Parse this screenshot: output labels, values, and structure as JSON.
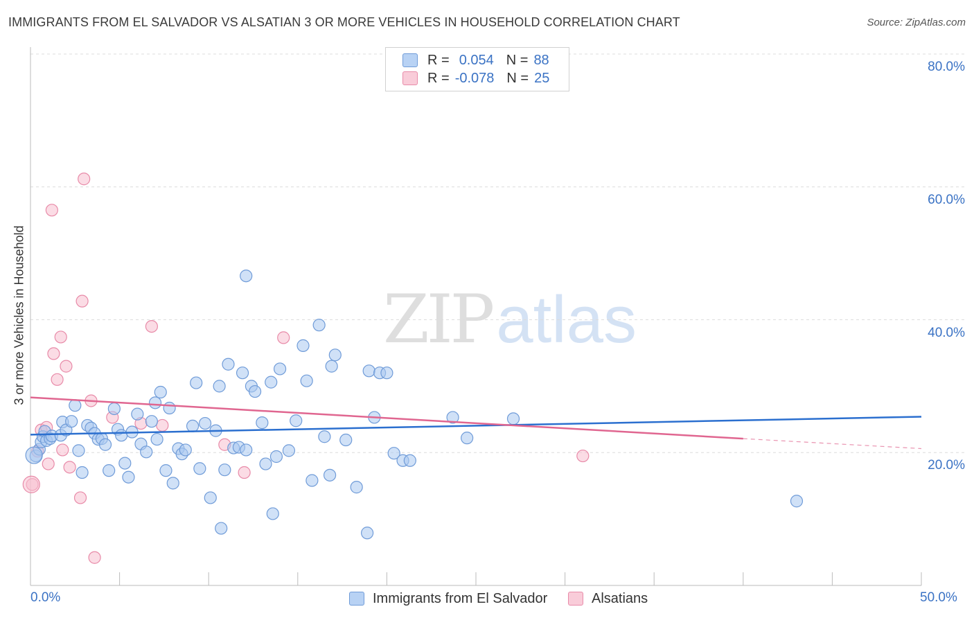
{
  "header": {
    "title": "IMMIGRANTS FROM EL SALVADOR VS ALSATIAN 3 OR MORE VEHICLES IN HOUSEHOLD CORRELATION CHART",
    "source": "Source: ZipAtlas.com"
  },
  "watermark": {
    "zip": "ZIP",
    "atlas": "atlas"
  },
  "legend": {
    "rows": [
      {
        "r_label": "R =",
        "r_value": "0.054",
        "n_label": "N =",
        "n_value": "88"
      },
      {
        "r_label": "R =",
        "r_value": "-0.078",
        "n_label": "N =",
        "n_value": "25"
      }
    ]
  },
  "colors": {
    "blue_fill": "#aac8f0",
    "blue_stroke": "#6f9bd8",
    "blue_line": "#2b6fcf",
    "pink_fill": "#f7bfd0",
    "pink_stroke": "#e88aa8",
    "pink_line": "#e06690",
    "tick_label": "#3a72c4",
    "grid": "#dcdcdc"
  },
  "chart_data": {
    "type": "scatter",
    "title": "IMMIGRANTS FROM EL SALVADOR VS ALSATIAN 3 OR MORE VEHICLES IN HOUSEHOLD CORRELATION CHART",
    "xlabel": "",
    "ylabel": "3 or more Vehicles in Household",
    "xlim": [
      0,
      50
    ],
    "ylim": [
      0,
      80
    ],
    "x_tick_labels": [
      "0.0%",
      "50.0%"
    ],
    "y_ticks": [
      20,
      40,
      60,
      80
    ],
    "y_tick_labels": [
      "20.0%",
      "40.0%",
      "60.0%",
      "80.0%"
    ],
    "grid": true,
    "legend_position": "bottom",
    "series": [
      {
        "name": "Immigrants from El Salvador",
        "trend": {
          "x": [
            0,
            50
          ],
          "y": [
            22.7,
            25.4
          ]
        },
        "points": [
          [
            0.3,
            19.5
          ],
          [
            0.5,
            20.5
          ],
          [
            0.6,
            21.6
          ],
          [
            0.7,
            22.4
          ],
          [
            0.8,
            23.2
          ],
          [
            0.9,
            21.8
          ],
          [
            1.1,
            22.1
          ],
          [
            1.2,
            22.5
          ],
          [
            1.7,
            22.6
          ],
          [
            1.8,
            24.6
          ],
          [
            2.0,
            23.4
          ],
          [
            2.3,
            24.7
          ],
          [
            2.5,
            27.1
          ],
          [
            2.7,
            20.3
          ],
          [
            2.9,
            17.0
          ],
          [
            3.2,
            24.1
          ],
          [
            3.4,
            23.7
          ],
          [
            3.6,
            22.9
          ],
          [
            3.8,
            22.0
          ],
          [
            4.0,
            22.1
          ],
          [
            4.2,
            21.2
          ],
          [
            4.4,
            17.3
          ],
          [
            4.7,
            26.6
          ],
          [
            4.9,
            23.5
          ],
          [
            5.1,
            22.6
          ],
          [
            5.3,
            18.4
          ],
          [
            5.5,
            16.3
          ],
          [
            5.7,
            23.1
          ],
          [
            6.0,
            25.8
          ],
          [
            6.2,
            21.3
          ],
          [
            6.5,
            20.1
          ],
          [
            6.8,
            24.7
          ],
          [
            7.0,
            27.5
          ],
          [
            7.1,
            22.0
          ],
          [
            7.3,
            29.1
          ],
          [
            7.6,
            17.3
          ],
          [
            7.8,
            26.7
          ],
          [
            8.0,
            15.4
          ],
          [
            8.3,
            20.6
          ],
          [
            8.5,
            19.8
          ],
          [
            8.7,
            20.4
          ],
          [
            9.1,
            24.0
          ],
          [
            9.3,
            30.5
          ],
          [
            9.5,
            17.6
          ],
          [
            9.8,
            24.4
          ],
          [
            10.1,
            13.2
          ],
          [
            10.4,
            23.3
          ],
          [
            10.6,
            30.0
          ],
          [
            10.7,
            8.6
          ],
          [
            10.9,
            17.4
          ],
          [
            11.1,
            33.3
          ],
          [
            11.4,
            20.7
          ],
          [
            11.7,
            20.8
          ],
          [
            11.9,
            32.0
          ],
          [
            12.1,
            20.4
          ],
          [
            12.1,
            46.6
          ],
          [
            12.4,
            30.0
          ],
          [
            12.6,
            29.2
          ],
          [
            13.0,
            24.5
          ],
          [
            13.2,
            18.3
          ],
          [
            13.5,
            30.6
          ],
          [
            13.6,
            10.8
          ],
          [
            13.8,
            19.4
          ],
          [
            14.0,
            32.6
          ],
          [
            14.5,
            20.3
          ],
          [
            14.9,
            24.8
          ],
          [
            15.3,
            36.1
          ],
          [
            15.5,
            30.8
          ],
          [
            15.8,
            15.8
          ],
          [
            16.2,
            39.2
          ],
          [
            16.5,
            22.4
          ],
          [
            16.8,
            16.6
          ],
          [
            16.9,
            33.0
          ],
          [
            17.1,
            34.7
          ],
          [
            17.7,
            21.9
          ],
          [
            18.3,
            14.8
          ],
          [
            18.9,
            7.9
          ],
          [
            19.0,
            32.3
          ],
          [
            19.3,
            25.3
          ],
          [
            19.6,
            32.0
          ],
          [
            20.0,
            32.0
          ],
          [
            20.4,
            19.9
          ],
          [
            20.9,
            18.8
          ],
          [
            21.3,
            18.8
          ],
          [
            23.7,
            25.3
          ],
          [
            24.5,
            22.2
          ],
          [
            27.1,
            25.1
          ],
          [
            43.0,
            12.7
          ]
        ]
      },
      {
        "name": "Alsatians",
        "trend": {
          "x": [
            0,
            40
          ],
          "y": [
            28.3,
            22.1
          ]
        },
        "trend_dashed": {
          "x": [
            40,
            50
          ],
          "y": [
            22.1,
            20.6
          ]
        },
        "points": [
          [
            0.1,
            15.2
          ],
          [
            0.4,
            20.2
          ],
          [
            0.6,
            23.4
          ],
          [
            0.9,
            23.8
          ],
          [
            1.0,
            18.3
          ],
          [
            1.2,
            56.5
          ],
          [
            1.3,
            34.9
          ],
          [
            1.5,
            31.0
          ],
          [
            1.7,
            37.4
          ],
          [
            1.8,
            20.4
          ],
          [
            2.0,
            33.0
          ],
          [
            2.2,
            17.8
          ],
          [
            2.8,
            13.2
          ],
          [
            2.9,
            42.8
          ],
          [
            3.0,
            61.2
          ],
          [
            3.4,
            27.8
          ],
          [
            3.6,
            4.2
          ],
          [
            4.6,
            25.3
          ],
          [
            6.2,
            24.4
          ],
          [
            6.8,
            39.0
          ],
          [
            7.4,
            24.1
          ],
          [
            10.9,
            21.2
          ],
          [
            12.0,
            17.0
          ],
          [
            14.2,
            37.3
          ],
          [
            31.0,
            19.5
          ]
        ]
      }
    ]
  }
}
